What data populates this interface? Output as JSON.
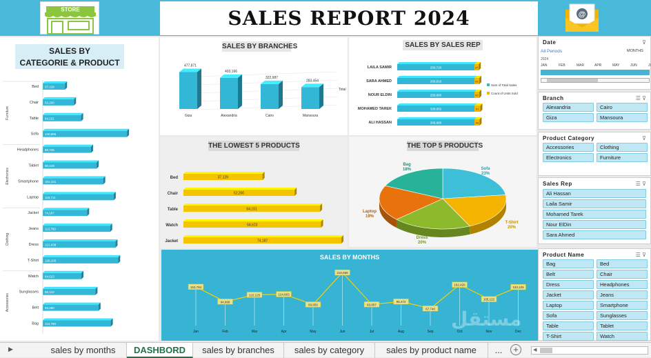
{
  "header": {
    "title": "SALES REPORT 2024",
    "store_sign": "STORE"
  },
  "panels": {
    "category_product": "SALES BY\nCATEGORIE & PRODUCT",
    "branches": "SALES BY BRANCHES",
    "sales_rep": "SALES BY SALES REP",
    "lowest5": "THE LOWEST 5 PRODUCTS",
    "top5": "THE TOP 5 PRODUCTS",
    "months": "SALES BY MONTHS"
  },
  "chart_data": [
    {
      "type": "bar",
      "name": "category_product",
      "groups": [
        {
          "label": "Furniture",
          "categories": [
            "Bed",
            "Chair",
            "Table",
            "Sofa"
          ]
        },
        {
          "label": "Electronics",
          "categories": [
            "Headphones",
            "Tablet",
            "Smartphone",
            "Laptop"
          ]
        },
        {
          "label": "Clothing",
          "categories": [
            "Jacket",
            "Jeans",
            "Dress",
            "T-Shirt"
          ]
        },
        {
          "label": "Accessories",
          "categories": [
            "Watch",
            "Sunglasses",
            "Belt",
            "Bag"
          ]
        }
      ],
      "categories": [
        "Bed",
        "Chair",
        "Table",
        "Sofa",
        "Headphones",
        "Tablet",
        "Smartphone",
        "Laptop",
        "Jacket",
        "Jeans",
        "Dress",
        "T-Shirt",
        "Watch",
        "Sunglasses",
        "Belt",
        "Bag"
      ],
      "values": [
        37129,
        52200,
        64151,
        140886,
        80726,
        90129,
        101121,
        118711,
        74187,
        112750,
        121638,
        126100,
        64623,
        88122,
        93280,
        113759
      ],
      "labels": [
        "37,129",
        "52,200",
        "64,151",
        "140,886",
        "80,726",
        "90,129",
        "101,121",
        "118,711",
        "74,187",
        "112,750",
        "121,638",
        "126,100",
        "64,623",
        "88,122",
        "93,280",
        "113,759"
      ],
      "color": "#33b7d6"
    },
    {
      "type": "bar",
      "name": "branches",
      "categories": [
        "Giza",
        "Alexandria",
        "Cairo",
        "Mansoura"
      ],
      "values": [
        477871,
        403166,
        322987,
        283454
      ],
      "labels": [
        "477,871",
        "403,166",
        "322,987",
        "283,454"
      ],
      "legend": "Total",
      "color": "#33b7d6"
    },
    {
      "type": "bar",
      "name": "sales_rep",
      "categories": [
        "LAILA SAMIR",
        "SARA AHMED",
        "NOUR ELDIN",
        "MOHAMED TAREK",
        "ALI HASSAN"
      ],
      "series": [
        {
          "name": "Sum of Total Sales",
          "values": [
            259720,
            268819,
            258680,
            329902,
            306968
          ],
          "labels": [
            "259,720",
            "268,819",
            "258,680",
            "329,902",
            "306,968"
          ],
          "color": "#33b7d6"
        },
        {
          "name": "Count of Units Sold",
          "values": [
            37,
            42,
            42,
            51,
            44
          ],
          "labels": [
            "37",
            "42",
            "42",
            "51",
            "44"
          ],
          "color": "#f2b600"
        }
      ]
    },
    {
      "type": "bar",
      "name": "lowest5",
      "categories": [
        "Bed",
        "Chair",
        "Table",
        "Watch",
        "Jacket"
      ],
      "values": [
        37129,
        52200,
        64151,
        64623,
        74187
      ],
      "labels": [
        "37,129",
        "52,200",
        "64,151",
        "64,623",
        "74,187"
      ],
      "color": "#f5c400"
    },
    {
      "type": "pie",
      "name": "top5",
      "categories": [
        "Sofa",
        "T-Shirt",
        "Dress",
        "Laptop",
        "Bag"
      ],
      "values": [
        23,
        20,
        20,
        19,
        18
      ],
      "labels": [
        "Sofa\n23%",
        "T-Shirt\n20%",
        "Dress\n20%",
        "Laptop\n19%",
        "Bag\n18%"
      ],
      "colors": [
        "#3dbfd8",
        "#f5b400",
        "#8dba2c",
        "#e8720c",
        "#26b39a"
      ]
    },
    {
      "type": "line",
      "name": "months",
      "categories": [
        "Jan",
        "Feb",
        "Mar",
        "Apr",
        "May",
        "Jun",
        "Jul",
        "Aug",
        "Sep",
        "Oct",
        "Nov",
        "Dec"
      ],
      "values": [
        153784,
        94999,
        122125,
        124663,
        83655,
        210668,
        83857,
        95472,
        67740,
        162426,
        105122,
        153125
      ],
      "labels": [
        "153,784",
        "94,999",
        "122,125",
        "124,663",
        "83,655",
        "210,668",
        "83,857",
        "95,472",
        "67,740",
        "162,426",
        "105,122",
        "153,125"
      ],
      "color": "#f5d000"
    }
  ],
  "timeline": {
    "title": "Date",
    "range": "All Periods",
    "unit": "MONTHS",
    "year": "2024",
    "months": [
      "JAN",
      "FEB",
      "MAR",
      "APR",
      "MAY",
      "JUN",
      "JU"
    ]
  },
  "slicers": {
    "branch": {
      "title": "Branch",
      "items": [
        "Alexandria",
        "Cairo",
        "Giza",
        "Mansoura"
      ]
    },
    "category": {
      "title": "Product Category",
      "items": [
        "Accessories",
        "Clothing",
        "Electronics",
        "Furniture"
      ]
    },
    "rep": {
      "title": "Sales Rep",
      "items": [
        "Ali Hassan",
        "Laila Samir",
        "Mohamed Tarek",
        "Nour ElDin",
        "Sara Ahmed"
      ]
    },
    "product": {
      "title": "Product Name",
      "items": [
        "Bag",
        "Bed",
        "Belt",
        "Chair",
        "Dress",
        "Headphones",
        "Jacket",
        "Jeans",
        "Laptop",
        "Smartphone",
        "Sofa",
        "Sunglasses",
        "Table",
        "Tablet",
        "T-Shirt",
        "Watch"
      ]
    }
  },
  "tabs": [
    "sales by months",
    "DASHBORD",
    "sales by branches",
    "sales by category",
    "sales by product name",
    "..."
  ],
  "active_tab": "DASHBORD",
  "watermark": "مستقل"
}
